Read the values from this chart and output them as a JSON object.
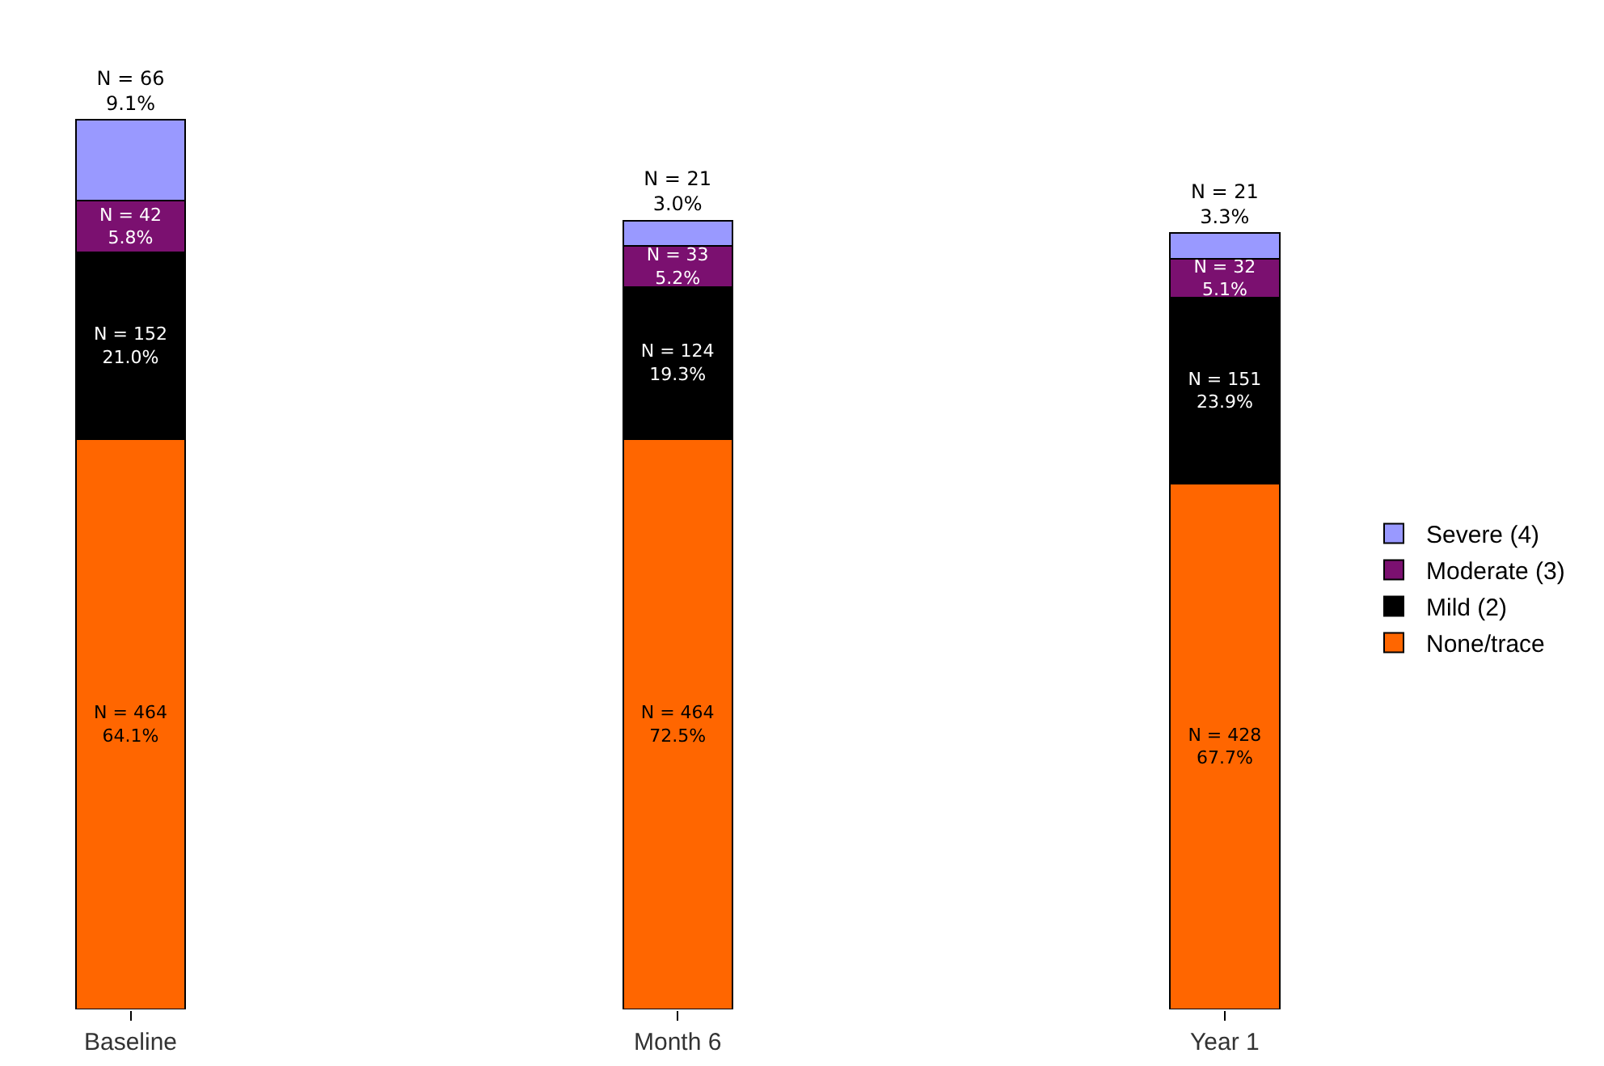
{
  "chart_data": {
    "type": "bar",
    "stacked": true,
    "categories": [
      "Baseline",
      "Month 6",
      "Year 1"
    ],
    "legend": "right",
    "grid": false,
    "series": [
      {
        "name": "None/trace",
        "color": "#ff6600",
        "values": [
          464,
          464,
          428
        ],
        "value_labels": [
          "N = 464\n64.1%",
          "N = 464\n72.5%",
          "N = 428\n67.7%"
        ]
      },
      {
        "name": "Mild (2)",
        "color": "#000000",
        "values": [
          152,
          124,
          151
        ],
        "value_labels": [
          "N = 152\n21.0%",
          "N = 124\n19.3%",
          "N = 151\n23.9%"
        ]
      },
      {
        "name": "Moderate (3)",
        "color": "#7b1070",
        "values": [
          42,
          33,
          32
        ],
        "value_labels": [
          "N = 42\n5.8%",
          "N = 33\n5.2%",
          "N = 32\n5.1%"
        ]
      },
      {
        "name": "Severe (4)",
        "color": "#9999ff",
        "values": [
          66,
          21,
          21
        ],
        "value_labels": [
          "N = 66\n9.1%",
          "N = 21\n3.0%",
          "N = 21\n3.3%"
        ]
      }
    ]
  }
}
